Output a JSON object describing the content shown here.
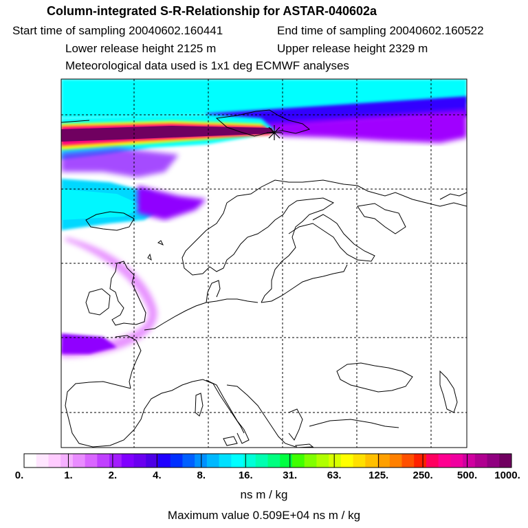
{
  "header": {
    "title": "Column-integrated S-R-Relationship for ASTAR-040602a",
    "start_time": "Start time of sampling 20040602.160441",
    "end_time": "End time of sampling 20040602.160522",
    "lower_height": "Lower release height 2125 m",
    "upper_height": "Upper release height 2329 m",
    "met_data": "Meteorological data used is 1x1 deg ECMWF analyses"
  },
  "colorbar": {
    "labels": [
      "0.",
      "1.",
      "2.",
      "4.",
      "8.",
      "16.",
      "31.",
      "63.",
      "125.",
      "250.",
      "500.",
      "1000."
    ],
    "colors": [
      "#ffffff",
      "#ffe6ff",
      "#ffccff",
      "#f5b0ff",
      "#e98cff",
      "#d966ff",
      "#c040ff",
      "#a31cff",
      "#8000ff",
      "#6a00f0",
      "#4d00e6",
      "#2000ff",
      "#0030ff",
      "#0060ff",
      "#0090ff",
      "#00b8ff",
      "#00e0ff",
      "#00ffff",
      "#00ffd8",
      "#00ffb0",
      "#00ff80",
      "#00ff40",
      "#40ff00",
      "#80ff00",
      "#b0ff00",
      "#d8ff00",
      "#ffff00",
      "#ffe000",
      "#ffc000",
      "#ffa000",
      "#ff8000",
      "#ff5000",
      "#ff2000",
      "#ff0060",
      "#ff0090",
      "#f000a0",
      "#d000a0",
      "#b00090",
      "#900080",
      "#700060"
    ],
    "units": "ns m / kg",
    "max_value": "Maximum value  0.509E+04 ns m / kg"
  },
  "map": {
    "source_marker": "release-site-star-icon"
  }
}
